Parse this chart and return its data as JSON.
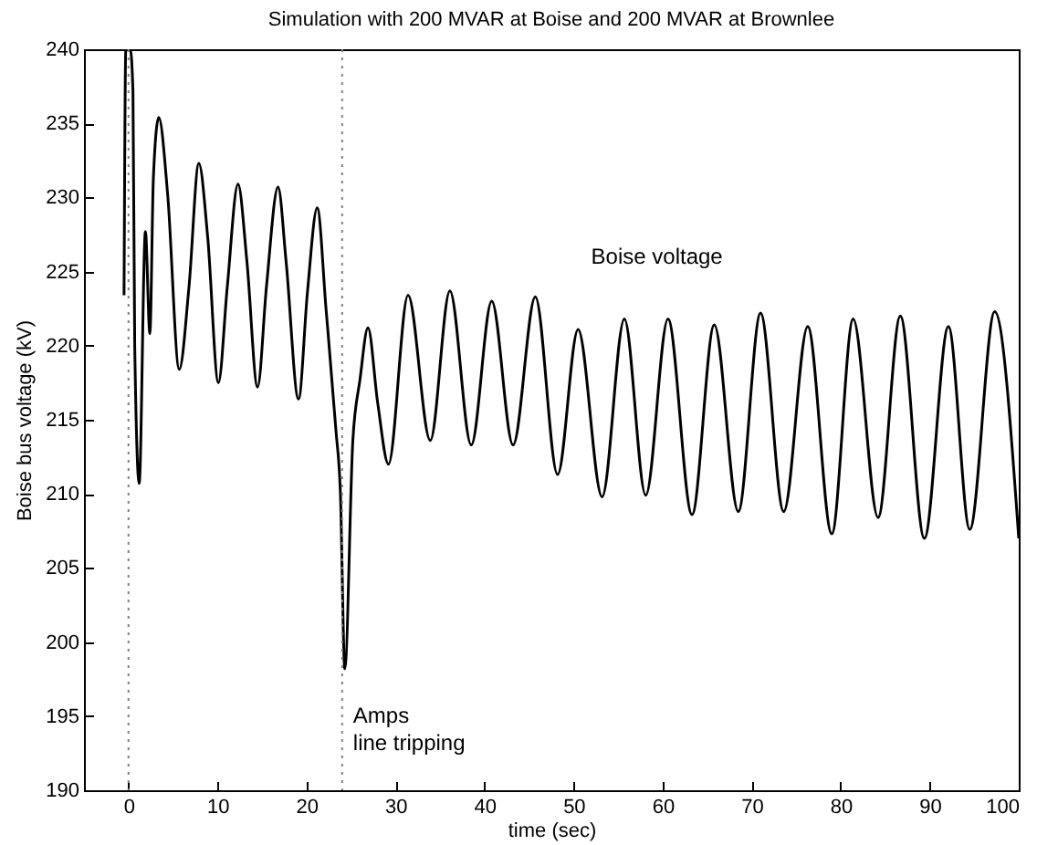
{
  "chart_data": {
    "type": "line",
    "title": "Simulation with 200 MVAR at Boise and 200 MVAR at Brownlee",
    "xlabel": "time (sec)",
    "ylabel": "Boise bus voltage (kV)",
    "series": [
      {
        "name": "Boise voltage",
        "color": "#000000",
        "x": [
          -0.5,
          -0.3,
          0.2,
          0.5,
          0.7,
          1.2,
          1.9,
          2.4,
          2.8,
          3.4,
          4.4,
          5.7,
          6.8,
          7.9,
          8.9,
          10.1,
          11.1,
          12.3,
          13.3,
          14.5,
          15.5,
          16.8,
          17.7,
          19.1,
          20.1,
          21.2,
          22.2,
          23.3,
          23.8,
          24.3,
          25.2,
          26.0,
          26.9,
          28.0,
          29.2,
          31.4,
          33.9,
          36.1,
          38.5,
          40.8,
          43.2,
          45.7,
          48.2,
          50.5,
          53.2,
          55.7,
          58.1,
          60.6,
          63.3,
          65.8,
          68.5,
          71.0,
          73.6,
          76.3,
          79.0,
          81.4,
          84.2,
          86.7,
          89.4,
          92.1,
          94.5,
          97.3,
          100
        ],
        "values": [
          223.4,
          240,
          240,
          237.2,
          220,
          210.7,
          227.7,
          220.8,
          231.4,
          235.4,
          230.2,
          218.4,
          224,
          232.3,
          227.3,
          217.5,
          224,
          230.9,
          225.7,
          217.2,
          224,
          230.7,
          225.7,
          216.4,
          223.6,
          229.3,
          222.4,
          214.3,
          210.1,
          198.2,
          213.6,
          217.7,
          221.2,
          216.1,
          212,
          223.4,
          213.6,
          223.7,
          213.3,
          223,
          213.3,
          223.3,
          211.3,
          221.1,
          209.8,
          221.8,
          209.9,
          221.8,
          208.6,
          221.4,
          208.8,
          222.2,
          208.8,
          221.3,
          207.3,
          221.8,
          208.4,
          222,
          207,
          221.3,
          207.6,
          222.3,
          207
        ]
      }
    ],
    "xlim": [
      -5,
      100
    ],
    "xticks": [
      0,
      10,
      20,
      30,
      40,
      50,
      60,
      70,
      80,
      90,
      100
    ],
    "ylim": [
      190,
      240
    ],
    "yticks": [
      190,
      195,
      200,
      205,
      210,
      215,
      220,
      225,
      230,
      235,
      240
    ],
    "ref_lines": [
      {
        "axis": "x",
        "value": 0,
        "color": "#808080",
        "line_style": "dotted"
      },
      {
        "axis": "x",
        "value": 24,
        "color": "#808080",
        "line_style": "dotted",
        "label": "Amps\nline tripping"
      }
    ],
    "grid": false,
    "marker": "none",
    "line_style": "solid"
  }
}
